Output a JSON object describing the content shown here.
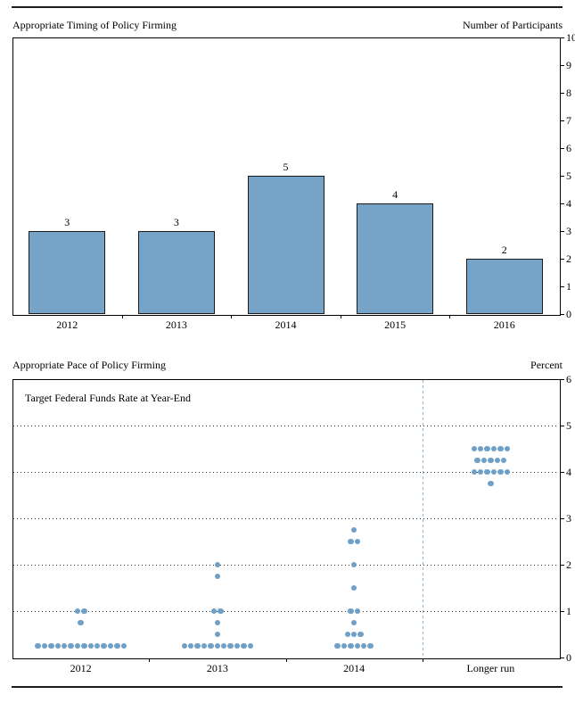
{
  "page": {
    "background": "#ffffff"
  },
  "chart_data": [
    {
      "type": "bar",
      "title": "Appropriate Timing of Policy Firming",
      "ylabel": "Number of Participants",
      "categories": [
        "2012",
        "2013",
        "2014",
        "2015",
        "2016"
      ],
      "values": [
        3,
        3,
        5,
        4,
        2
      ],
      "ylim": [
        0,
        10
      ],
      "ytick_step": 1,
      "grid": false,
      "value_labels": [
        3,
        3,
        5,
        4,
        2
      ],
      "bar_color": "#76a3c8",
      "bar_border_color": "#1a1a1a"
    },
    {
      "type": "scatter",
      "title": "Appropriate Pace of Policy Firming",
      "ylabel": "Percent",
      "annotation": "Target Federal Funds Rate at Year-End",
      "categories": [
        "2012",
        "2013",
        "2014",
        "Longer run"
      ],
      "ylim": [
        0,
        6
      ],
      "ytick_step": 1,
      "gridlines_at": [
        1,
        2,
        3,
        4,
        5
      ],
      "separator_after_category": "2014",
      "separator_color": "#8ab5d6",
      "dot_color": "#6fa0c8",
      "series": [
        {
          "category": "2012",
          "dots": [
            {
              "rate": 1.0,
              "count": 2
            },
            {
              "rate": 0.75,
              "count": 1
            },
            {
              "rate": 0.25,
              "count": 14
            }
          ]
        },
        {
          "category": "2013",
          "dots": [
            {
              "rate": 2.0,
              "count": 1
            },
            {
              "rate": 1.75,
              "count": 1
            },
            {
              "rate": 1.0,
              "count": 2
            },
            {
              "rate": 0.75,
              "count": 1
            },
            {
              "rate": 0.5,
              "count": 1
            },
            {
              "rate": 0.25,
              "count": 11
            }
          ]
        },
        {
          "category": "2014",
          "dots": [
            {
              "rate": 2.75,
              "count": 1
            },
            {
              "rate": 2.5,
              "count": 2
            },
            {
              "rate": 2.0,
              "count": 1
            },
            {
              "rate": 1.5,
              "count": 1
            },
            {
              "rate": 1.0,
              "count": 2
            },
            {
              "rate": 0.75,
              "count": 1
            },
            {
              "rate": 0.5,
              "count": 3
            },
            {
              "rate": 0.25,
              "count": 6
            }
          ]
        },
        {
          "category": "Longer run",
          "dots": [
            {
              "rate": 4.5,
              "count": 6
            },
            {
              "rate": 4.25,
              "count": 5
            },
            {
              "rate": 4.0,
              "count": 6
            },
            {
              "rate": 3.75,
              "count": 1
            }
          ]
        }
      ]
    }
  ]
}
